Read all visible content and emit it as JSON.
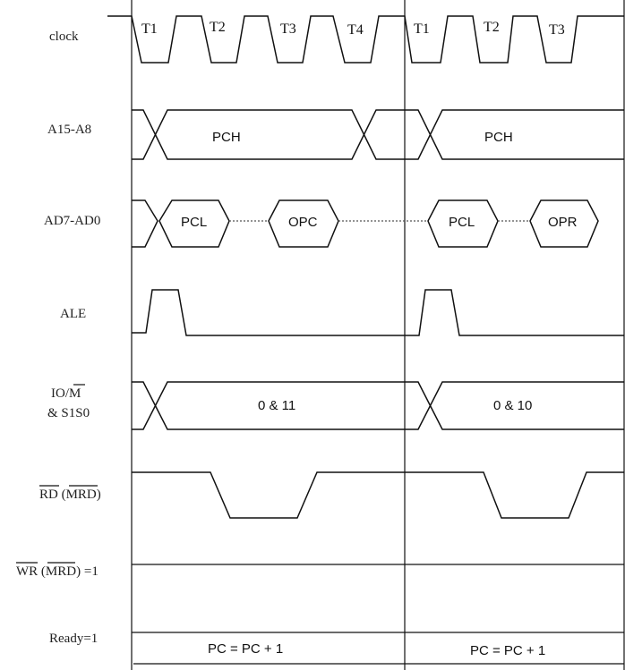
{
  "signals": {
    "clock": "clock",
    "addr_high": "A15-A8",
    "addr_data": "AD7-AD0",
    "ale": "ALE",
    "io_m_line1_pre": "IO/",
    "io_m_line1_bar": "M",
    "io_m_line2": "& S1S0",
    "rd_bar": "RD",
    "rd_mid": " (",
    "rd_mrd_bar": "MRD",
    "rd_end": ")",
    "wr_bar": "WR",
    "wr_mid": " (",
    "wr_mrd": "MRD",
    "wr_end": ") =1",
    "ready": "Ready=1"
  },
  "states": {
    "c1": [
      "T1",
      "T2",
      "T3",
      "T4"
    ],
    "c2": [
      "T1",
      "T2",
      "T3"
    ]
  },
  "boxes": {
    "pch1": "PCH",
    "pch2": "PCH",
    "pcl1": "PCL",
    "opc": "OPC",
    "pcl2": "PCL",
    "opr": "OPR",
    "status1": "0 & 11",
    "status2": "0 & 10"
  },
  "notes": {
    "pc1": "PC = PC + 1",
    "pc2": "PC = PC + 1"
  }
}
